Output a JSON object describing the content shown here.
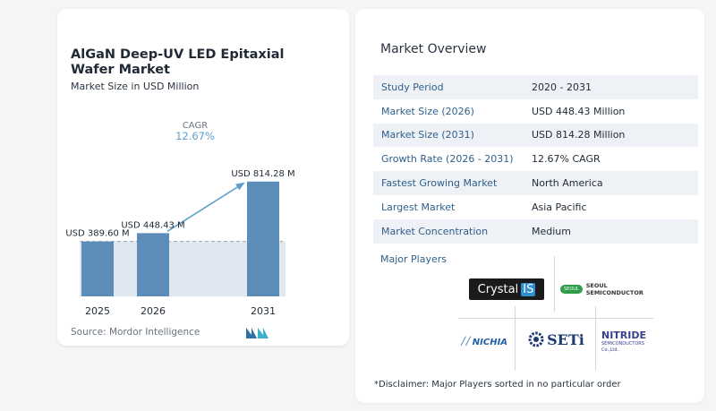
{
  "chart_data": {
    "type": "bar",
    "title": "AlGaN Deep-UV LED Epitaxial Wafer Market",
    "subtitle": "Market Size in USD Million",
    "categories": [
      "2025",
      "2026",
      "2031"
    ],
    "values": [
      389.6,
      448.43,
      814.28
    ],
    "value_labels": [
      "USD 389.60 M",
      "USD 448.43 M",
      "USD 814.28 M"
    ],
    "cagr_label": "CAGR",
    "cagr_value": "12.67%",
    "bar_color": "#5b8db8",
    "baseline_band_color": "#dfe8f1",
    "arrow_color": "#5d9fc9"
  },
  "source": "Source:  Mordor Intelligence",
  "overview": {
    "title": "Market Overview",
    "rows": [
      {
        "label": "Study Period",
        "value": "2020 - 2031"
      },
      {
        "label": "Market Size (2026)",
        "value": "USD 448.43 Million"
      },
      {
        "label": "Market Size (2031)",
        "value": "USD 814.28 Million"
      },
      {
        "label": "Growth Rate (2026 - 2031)",
        "value": "12.67% CAGR"
      },
      {
        "label": "Fastest Growing Market",
        "value": "North America"
      },
      {
        "label": "Largest Market",
        "value": "Asia Pacific"
      },
      {
        "label": "Market Concentration",
        "value": "Medium"
      }
    ]
  },
  "players": {
    "title": "Major Players",
    "crystal_is": {
      "text_a": "Crystal",
      "text_b": "IS"
    },
    "seoul": {
      "badge": "SEOUL",
      "text": "SEOUL SEMICONDUCTOR"
    },
    "nichia": {
      "text": "NICHIA"
    },
    "seti": {
      "text": "SETi"
    },
    "nitride": {
      "line1": "NITRIDE",
      "line2": "SEMICONDUCTORS",
      "line3": "Co.,Ltd."
    }
  },
  "disclaimer": "*Disclaimer: Major Players sorted in no particular order"
}
